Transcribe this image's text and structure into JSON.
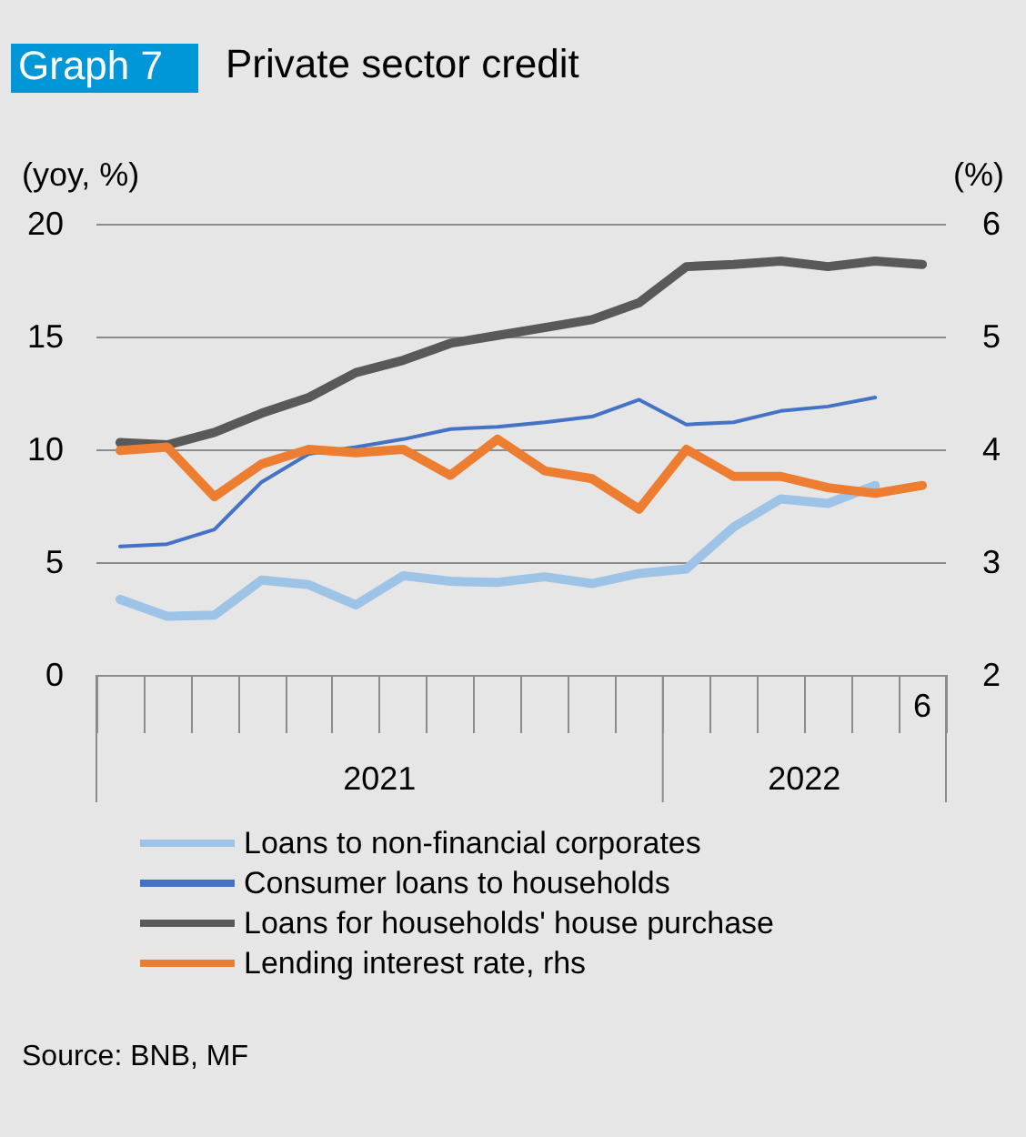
{
  "chart_data": {
    "type": "line",
    "title": "Private sector credit",
    "subtitle": "Graph 7",
    "ylabel": "(yoy, %)",
    "y2label": "(%)",
    "categories": [
      null,
      null,
      null,
      null,
      null,
      null,
      null,
      null,
      null,
      null,
      null,
      null,
      null,
      null,
      null,
      null,
      null,
      "6"
    ],
    "series": [
      {
        "name": "Loans to non-financial corporates",
        "color": "#9dc3e6",
        "values": [
          3.35,
          2.6,
          2.65,
          4.2,
          4.0,
          3.1,
          4.4,
          4.15,
          4.1,
          4.35,
          4.05,
          4.5,
          4.7,
          6.55,
          7.8,
          7.6,
          8.4,
          null
        ]
      },
      {
        "name": "Consumer loans to households",
        "color": "#4472c4",
        "values": [
          5.7,
          5.8,
          6.45,
          8.55,
          9.8,
          10.1,
          10.45,
          10.9,
          11.0,
          11.2,
          11.45,
          12.2,
          11.1,
          11.2,
          11.7,
          11.9,
          12.3,
          null
        ]
      },
      {
        "name": "Loans for households' house purchase",
        "color": "#595959",
        "values": [
          10.3,
          10.2,
          10.75,
          11.6,
          12.3,
          13.4,
          13.95,
          14.7,
          15.05,
          15.4,
          15.75,
          16.5,
          18.1,
          18.2,
          18.35,
          18.1,
          18.35,
          18.2
        ]
      },
      {
        "name": "Lending interest rate, rhs",
        "color": "#ed7d31",
        "axis": "y2",
        "values": [
          3.99,
          4.02,
          3.58,
          3.87,
          4.0,
          3.97,
          4.0,
          3.77,
          4.09,
          3.81,
          3.74,
          3.47,
          4.0,
          3.76,
          3.76,
          3.66,
          3.61,
          3.68
        ]
      }
    ],
    "ylim": [
      0,
      20
    ],
    "yticks": [
      0,
      5,
      10,
      15,
      20
    ],
    "y2lim": [
      2,
      6
    ],
    "y2ticks": [
      2,
      3,
      4,
      5,
      6
    ],
    "grid": "y",
    "legend": "bottom",
    "marker": "none",
    "line_style": "solid",
    "annotations": [
      "2021",
      "2022",
      "Source: BNB, MF"
    ]
  }
}
